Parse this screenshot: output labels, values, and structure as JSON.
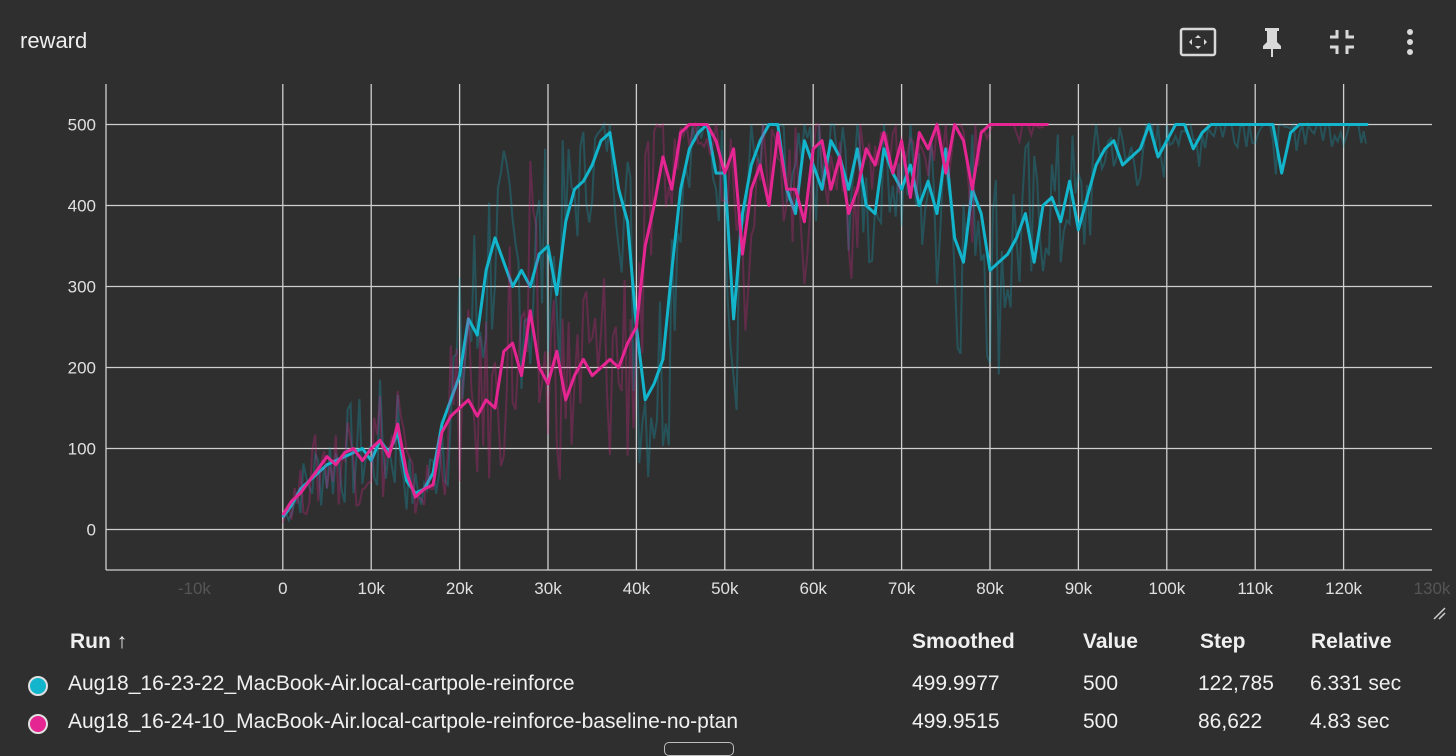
{
  "title": "reward",
  "toolbar": {
    "fit_icon": "fit-to-data-icon",
    "pin_icon": "pin-icon",
    "collapse_icon": "collapse-icon",
    "menu_icon": "more-vert-icon"
  },
  "colors": {
    "background": "#2f2f2f",
    "grid": "#cfcfcf",
    "series_cyan": "#12b5cb",
    "series_pink": "#e52592"
  },
  "chart_data": {
    "type": "line",
    "title": "reward",
    "xlim": [
      -20000,
      130000
    ],
    "ylim": [
      -50,
      550
    ],
    "x_ticks": [
      {
        "value": -10000,
        "label": "-10k",
        "faded": true
      },
      {
        "value": 0,
        "label": "0"
      },
      {
        "value": 10000,
        "label": "10k"
      },
      {
        "value": 20000,
        "label": "20k"
      },
      {
        "value": 30000,
        "label": "30k"
      },
      {
        "value": 40000,
        "label": "40k"
      },
      {
        "value": 50000,
        "label": "50k"
      },
      {
        "value": 60000,
        "label": "60k"
      },
      {
        "value": 70000,
        "label": "70k"
      },
      {
        "value": 80000,
        "label": "80k"
      },
      {
        "value": 90000,
        "label": "90k"
      },
      {
        "value": 100000,
        "label": "100k"
      },
      {
        "value": 110000,
        "label": "110k"
      },
      {
        "value": 120000,
        "label": "120k"
      },
      {
        "value": 130000,
        "label": "130k",
        "faded": true
      }
    ],
    "y_ticks": [
      {
        "value": 0,
        "label": "0"
      },
      {
        "value": 100,
        "label": "100"
      },
      {
        "value": 200,
        "label": "200"
      },
      {
        "value": 300,
        "label": "300"
      },
      {
        "value": 400,
        "label": "400"
      },
      {
        "value": 500,
        "label": "500"
      }
    ],
    "series": [
      {
        "name": "Aug18_16-23-22_MacBook-Air.local-cartpole-reinforce",
        "color": "#12b5cb",
        "x": [
          0,
          1000,
          2000,
          3000,
          4000,
          5000,
          6000,
          7000,
          8000,
          9000,
          10000,
          11000,
          12000,
          13000,
          14000,
          15000,
          16000,
          17000,
          18000,
          19000,
          20000,
          21000,
          22000,
          23000,
          24000,
          25000,
          26000,
          27000,
          28000,
          29000,
          30000,
          31000,
          32000,
          33000,
          34000,
          35000,
          36000,
          37000,
          38000,
          39000,
          40000,
          41000,
          42000,
          43000,
          44000,
          45000,
          46000,
          47000,
          48000,
          49000,
          50000,
          51000,
          52000,
          53000,
          54000,
          55000,
          56000,
          57000,
          58000,
          59000,
          60000,
          61000,
          62000,
          63000,
          64000,
          65000,
          66000,
          67000,
          68000,
          69000,
          70000,
          71000,
          72000,
          73000,
          74000,
          75000,
          76000,
          77000,
          78000,
          79000,
          80000,
          81000,
          82000,
          83000,
          84000,
          85000,
          86000,
          87000,
          88000,
          89000,
          90000,
          91000,
          92000,
          93000,
          94000,
          95000,
          96000,
          97000,
          98000,
          99000,
          100000,
          101000,
          102000,
          103000,
          104000,
          105000,
          106000,
          107000,
          108000,
          109000,
          110000,
          111000,
          112000,
          113000,
          114000,
          115000,
          116000,
          117000,
          118000,
          119000,
          120000,
          121000,
          122000,
          122785
        ],
        "values": [
          15,
          30,
          50,
          60,
          70,
          80,
          85,
          90,
          95,
          100,
          85,
          110,
          95,
          120,
          60,
          45,
          50,
          70,
          130,
          160,
          190,
          260,
          240,
          320,
          360,
          330,
          300,
          320,
          300,
          340,
          350,
          290,
          380,
          420,
          430,
          450,
          480,
          490,
          420,
          380,
          250,
          160,
          180,
          210,
          320,
          420,
          470,
          490,
          500,
          440,
          440,
          260,
          390,
          450,
          480,
          500,
          500,
          420,
          390,
          480,
          450,
          420,
          480,
          460,
          420,
          470,
          400,
          390,
          470,
          440,
          420,
          450,
          400,
          430,
          390,
          470,
          360,
          330,
          420,
          390,
          320,
          330,
          340,
          360,
          390,
          330,
          400,
          410,
          380,
          430,
          370,
          410,
          450,
          470,
          480,
          450,
          460,
          470,
          500,
          460,
          480,
          500,
          500,
          470,
          490,
          500,
          500,
          500,
          500,
          500,
          500,
          500,
          500,
          440,
          490,
          500,
          500,
          500,
          500,
          500,
          500,
          500,
          500,
          500
        ]
      },
      {
        "name": "Aug18_16-24-10_MacBook-Air.local-cartpole-reinforce-baseline-no-ptan",
        "color": "#e52592",
        "x": [
          0,
          1000,
          2000,
          3000,
          4000,
          5000,
          6000,
          7000,
          8000,
          9000,
          10000,
          11000,
          12000,
          13000,
          14000,
          15000,
          16000,
          17000,
          18000,
          19000,
          20000,
          21000,
          22000,
          23000,
          24000,
          25000,
          26000,
          27000,
          28000,
          29000,
          30000,
          31000,
          32000,
          33000,
          34000,
          35000,
          36000,
          37000,
          38000,
          39000,
          40000,
          41000,
          42000,
          43000,
          44000,
          45000,
          46000,
          47000,
          48000,
          49000,
          50000,
          51000,
          52000,
          53000,
          54000,
          55000,
          56000,
          57000,
          58000,
          59000,
          60000,
          61000,
          62000,
          63000,
          64000,
          65000,
          66000,
          67000,
          68000,
          69000,
          70000,
          71000,
          72000,
          73000,
          74000,
          75000,
          76000,
          77000,
          78000,
          79000,
          80000,
          81000,
          82000,
          83000,
          84000,
          85000,
          86622
        ],
        "values": [
          18,
          35,
          45,
          60,
          75,
          90,
          80,
          95,
          100,
          85,
          100,
          110,
          90,
          130,
          70,
          40,
          50,
          55,
          120,
          140,
          150,
          160,
          140,
          160,
          150,
          220,
          230,
          190,
          270,
          200,
          180,
          220,
          160,
          190,
          210,
          190,
          200,
          210,
          200,
          230,
          250,
          350,
          400,
          460,
          420,
          490,
          500,
          500,
          500,
          480,
          440,
          470,
          340,
          420,
          450,
          400,
          490,
          420,
          420,
          380,
          470,
          480,
          420,
          460,
          390,
          420,
          470,
          450,
          490,
          440,
          480,
          410,
          490,
          470,
          500,
          440,
          500,
          480,
          420,
          490,
          500,
          500,
          500,
          500,
          500,
          500,
          500
        ]
      }
    ]
  },
  "table": {
    "headers": {
      "run": "Run ↑",
      "smoothed": "Smoothed",
      "value": "Value",
      "step": "Step",
      "relative": "Relative"
    },
    "rows": [
      {
        "color": "#12b5cb",
        "run": "Aug18_16-23-22_MacBook-Air.local-cartpole-reinforce",
        "smoothed": "499.9977",
        "value": "500",
        "step": "122,785",
        "relative": "6.331 sec"
      },
      {
        "color": "#e52592",
        "run": "Aug18_16-24-10_MacBook-Air.local-cartpole-reinforce-baseline-no-ptan",
        "smoothed": "499.9515",
        "value": "500",
        "step": "86,622",
        "relative": "4.83 sec"
      }
    ]
  }
}
